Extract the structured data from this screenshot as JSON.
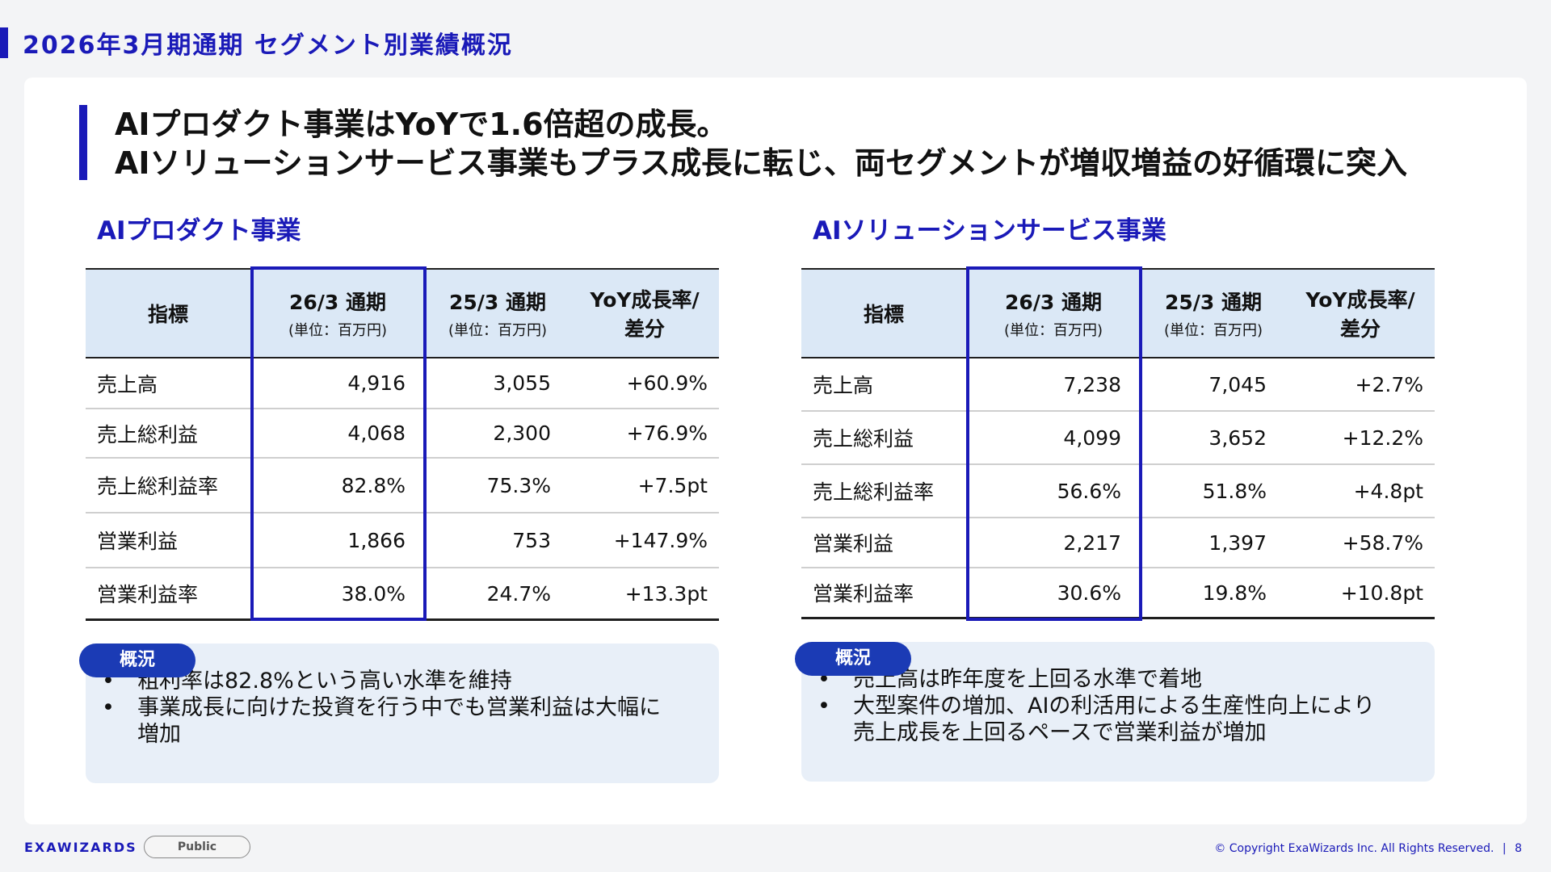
{
  "slide": {
    "title": "2026年3月期通期 セグメント別業績概況",
    "headline": [
      "AIプロダクト事業はYoYで1.6倍超の成長。",
      "AIソリューションサービス事業もプラス成長に転じ、両セグメントが増収増益の好循環に突入"
    ]
  },
  "sections": [
    {
      "title": "AIプロダクト事業",
      "headers": [
        "指標",
        "26/3 通期",
        "25/3 通期",
        "YoY成長率/",
        "差分"
      ],
      "unit": "(単位：百万円)",
      "rows": [
        {
          "label": "売上高",
          "cur": "4,916",
          "prev": "3,055",
          "yoy": "+60.9%"
        },
        {
          "label": "売上総利益",
          "cur": "4,068",
          "prev": "2,300",
          "yoy": "+76.9%"
        },
        {
          "label": "売上総利益率",
          "cur": "82.8%",
          "prev": "75.3%",
          "yoy": "+7.5pt"
        },
        {
          "label": "営業利益",
          "cur": "1,866",
          "prev": "753",
          "yoy": "+147.9%"
        },
        {
          "label": "営業利益率",
          "cur": "38.0%",
          "prev": "24.7%",
          "yoy": "+13.3pt"
        }
      ],
      "summary_label": "概況",
      "bullets": [
        [
          "粗利率は82.8%という高い水準を維持"
        ],
        [
          "事業成長に向けた投資を行う中でも営業利益は大幅に",
          "増加"
        ]
      ]
    },
    {
      "title": "AIソリューションサービス事業",
      "headers": [
        "指標",
        "26/3 通期",
        "25/3 通期",
        "YoY成長率/",
        "差分"
      ],
      "unit": "(単位：百万円)",
      "rows": [
        {
          "label": "売上高",
          "cur": "7,238",
          "prev": "7,045",
          "yoy": "+2.7%"
        },
        {
          "label": "売上総利益",
          "cur": "4,099",
          "prev": "3,652",
          "yoy": "+12.2%"
        },
        {
          "label": "売上総利益率",
          "cur": "56.6%",
          "prev": "51.8%",
          "yoy": "+4.8pt"
        },
        {
          "label": "営業利益",
          "cur": "2,217",
          "prev": "1,397",
          "yoy": "+58.7%"
        },
        {
          "label": "営業利益率",
          "cur": "30.6%",
          "prev": "19.8%",
          "yoy": "+10.8pt"
        }
      ],
      "summary_label": "概況",
      "bullets": [
        [
          "売上高は昨年度を上回る水準で着地"
        ],
        [
          "大型案件の増加、AIの利活用による生産性向上により",
          "売上成長を上回るペースで営業利益が増加"
        ]
      ]
    }
  ],
  "footer": {
    "logo": "EXAWIZARDS",
    "classification": "Public",
    "copyright": "© Copyright ExaWizards Inc. All Rights Reserved.",
    "separator": "|",
    "page": "8"
  }
}
